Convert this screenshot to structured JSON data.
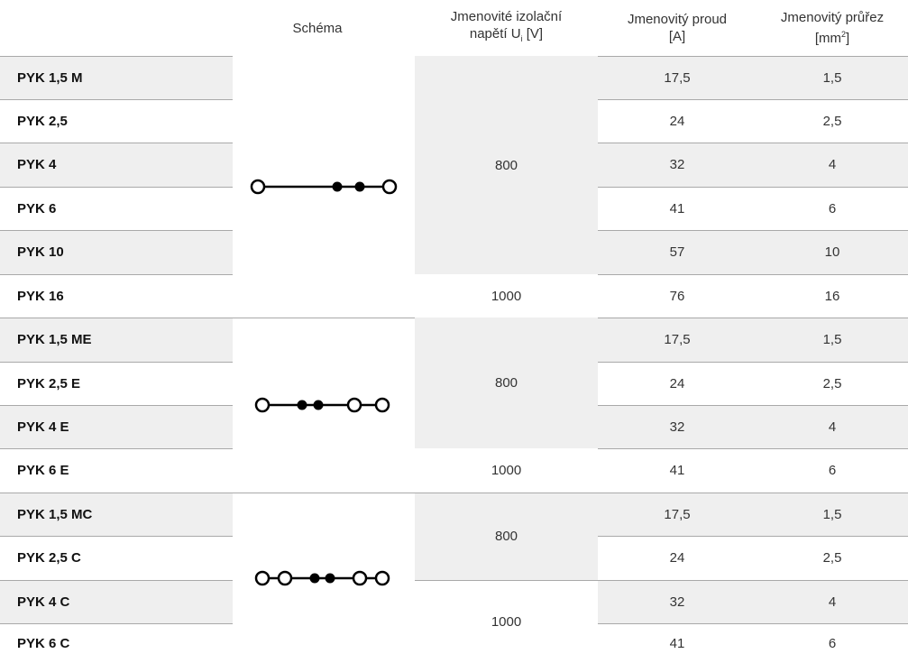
{
  "headers": {
    "schema": "Schéma",
    "voltage_line1": "Jmenovité izolační",
    "voltage_line2_pre": "napětí U",
    "voltage_sub": "i",
    "voltage_line2_post": " [V]",
    "current_line1": "Jmenovitý proud",
    "current_line2": "[A]",
    "cross_line1": "Jmenovitý průřez",
    "cross_line2_pre": "[mm",
    "cross_sup": "2",
    "cross_line2_post": "]"
  },
  "rows": [
    {
      "name": "PYK 1,5 M",
      "current": "17,5",
      "cross": "1,5"
    },
    {
      "name": "PYK 2,5",
      "current": "24",
      "cross": "2,5"
    },
    {
      "name": "PYK 4",
      "current": "32",
      "cross": "4"
    },
    {
      "name": "PYK 6",
      "current": "41",
      "cross": "6"
    },
    {
      "name": "PYK 10",
      "current": "57",
      "cross": "10"
    },
    {
      "name": "PYK 16",
      "current": "76",
      "cross": "16"
    },
    {
      "name": "PYK 1,5 ME",
      "current": "17,5",
      "cross": "1,5"
    },
    {
      "name": "PYK 2,5 E",
      "current": "24",
      "cross": "2,5"
    },
    {
      "name": "PYK 4 E",
      "current": "32",
      "cross": "4"
    },
    {
      "name": "PYK 6 E",
      "current": "41",
      "cross": "6"
    },
    {
      "name": "PYK 1,5 MC",
      "current": "17,5",
      "cross": "1,5"
    },
    {
      "name": "PYK 2,5 C",
      "current": "24",
      "cross": "2,5"
    },
    {
      "name": "PYK 4 C",
      "current": "32",
      "cross": "4"
    },
    {
      "name": "PYK 6 C",
      "current": "41",
      "cross": "6"
    }
  ],
  "voltage_groups": [
    {
      "value": "800",
      "rows": "PYK 1,5 M – PYK 10"
    },
    {
      "value": "1000",
      "rows": "PYK 16"
    },
    {
      "value": "800",
      "rows": "PYK 1,5 ME – PYK 4 E"
    },
    {
      "value": "1000",
      "rows": "PYK 6 E"
    },
    {
      "value": "800",
      "rows": "PYK 1,5 MC – PYK 2,5 C"
    },
    {
      "value": "1000",
      "rows": "PYK 4 C – PYK 6 C"
    }
  ],
  "schemas": [
    {
      "icon": "schema-icon-o-dot-dot-o"
    },
    {
      "icon": "schema-icon-o-dotdot-o-o"
    },
    {
      "icon": "schema-icon-o-o-dotdot-o-o"
    }
  ],
  "colors": {
    "shade": "#efefef",
    "rule": "#a9a9a9"
  }
}
